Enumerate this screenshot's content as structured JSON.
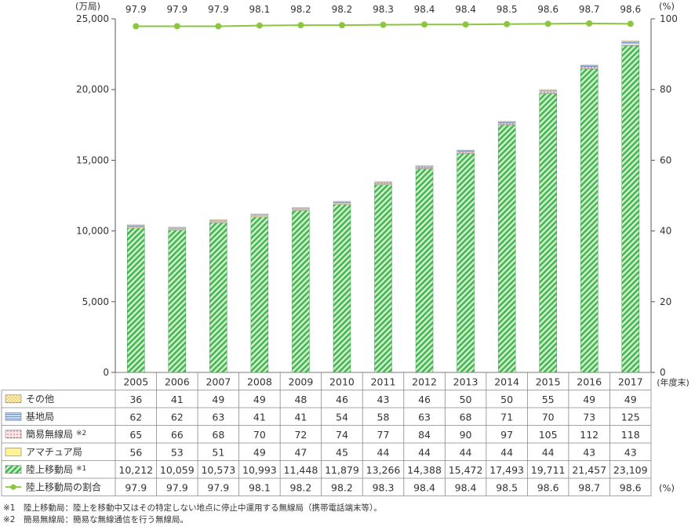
{
  "chart_data": {
    "type": "bar",
    "stacked": true,
    "y_unit_left": "(万局)",
    "y_unit_right": "(%)",
    "x_unit": "(年度末)",
    "table_unit": "(%)",
    "ylim_left": [
      0,
      25000
    ],
    "yticks_left": [
      "0",
      "5,000",
      "10,000",
      "15,000",
      "20,000",
      "25,000"
    ],
    "ylim_right": [
      0,
      100
    ],
    "yticks_right": [
      "0",
      "20",
      "40",
      "60",
      "80",
      "100"
    ],
    "grid": false,
    "legend": "table-below",
    "categories": [
      "2005",
      "2006",
      "2007",
      "2008",
      "2009",
      "2010",
      "2011",
      "2012",
      "2013",
      "2014",
      "2015",
      "2016",
      "2017"
    ],
    "series": [
      {
        "name": "その他",
        "kind": "bar",
        "color": "#f5d76e",
        "values": [
          36,
          41,
          49,
          49,
          48,
          46,
          43,
          46,
          50,
          50,
          55,
          49,
          49
        ],
        "labels": [
          "36",
          "41",
          "49",
          "49",
          "48",
          "46",
          "43",
          "46",
          "50",
          "50",
          "55",
          "49",
          "49"
        ]
      },
      {
        "name": "基地局",
        "kind": "bar",
        "color": "#8fb3e0",
        "values": [
          62,
          62,
          63,
          41,
          41,
          54,
          58,
          63,
          68,
          71,
          70,
          73,
          125
        ],
        "labels": [
          "62",
          "62",
          "63",
          "41",
          "41",
          "54",
          "58",
          "63",
          "68",
          "71",
          "70",
          "73",
          "125"
        ]
      },
      {
        "name": "簡易無線局",
        "note": "※2",
        "kind": "bar",
        "color": "#e8a0a8",
        "values": [
          65,
          66,
          68,
          70,
          72,
          74,
          77,
          84,
          90,
          97,
          105,
          112,
          118
        ],
        "labels": [
          "65",
          "66",
          "68",
          "70",
          "72",
          "74",
          "77",
          "84",
          "90",
          "97",
          "105",
          "112",
          "118"
        ]
      },
      {
        "name": "アマチュア局",
        "kind": "bar",
        "color": "#fff29a",
        "values": [
          56,
          53,
          51,
          49,
          47,
          45,
          44,
          44,
          44,
          44,
          44,
          43,
          43
        ],
        "labels": [
          "56",
          "53",
          "51",
          "49",
          "47",
          "45",
          "44",
          "44",
          "44",
          "44",
          "44",
          "43",
          "43"
        ]
      },
      {
        "name": "陸上移動局",
        "note": "※1",
        "kind": "bar",
        "color": "#3fb54a",
        "values": [
          10212,
          10059,
          10573,
          10993,
          11448,
          11879,
          13266,
          14388,
          15472,
          17493,
          19711,
          21457,
          23109
        ],
        "labels": [
          "10,212",
          "10,059",
          "10,573",
          "10,993",
          "11,448",
          "11,879",
          "13,266",
          "14,388",
          "15,472",
          "17,493",
          "19,711",
          "21,457",
          "23,109"
        ]
      },
      {
        "name": "陸上移動局の割合",
        "kind": "line",
        "axis": "right",
        "color": "#8cc63f",
        "values": [
          97.9,
          97.9,
          97.9,
          98.1,
          98.2,
          98.2,
          98.3,
          98.4,
          98.4,
          98.5,
          98.6,
          98.7,
          98.6
        ],
        "labels": [
          "97.9",
          "97.9",
          "97.9",
          "98.1",
          "98.2",
          "98.2",
          "98.3",
          "98.4",
          "98.4",
          "98.5",
          "98.6",
          "98.7",
          "98.6"
        ]
      }
    ]
  },
  "footnotes": [
    "※1　陸上移動局：陸上を移動中又はその特定しない地点に停止中運用する無線局（携帯電話端末等）。",
    "※2　簡易無線局：簡易な無線通信を行う無線局。"
  ]
}
